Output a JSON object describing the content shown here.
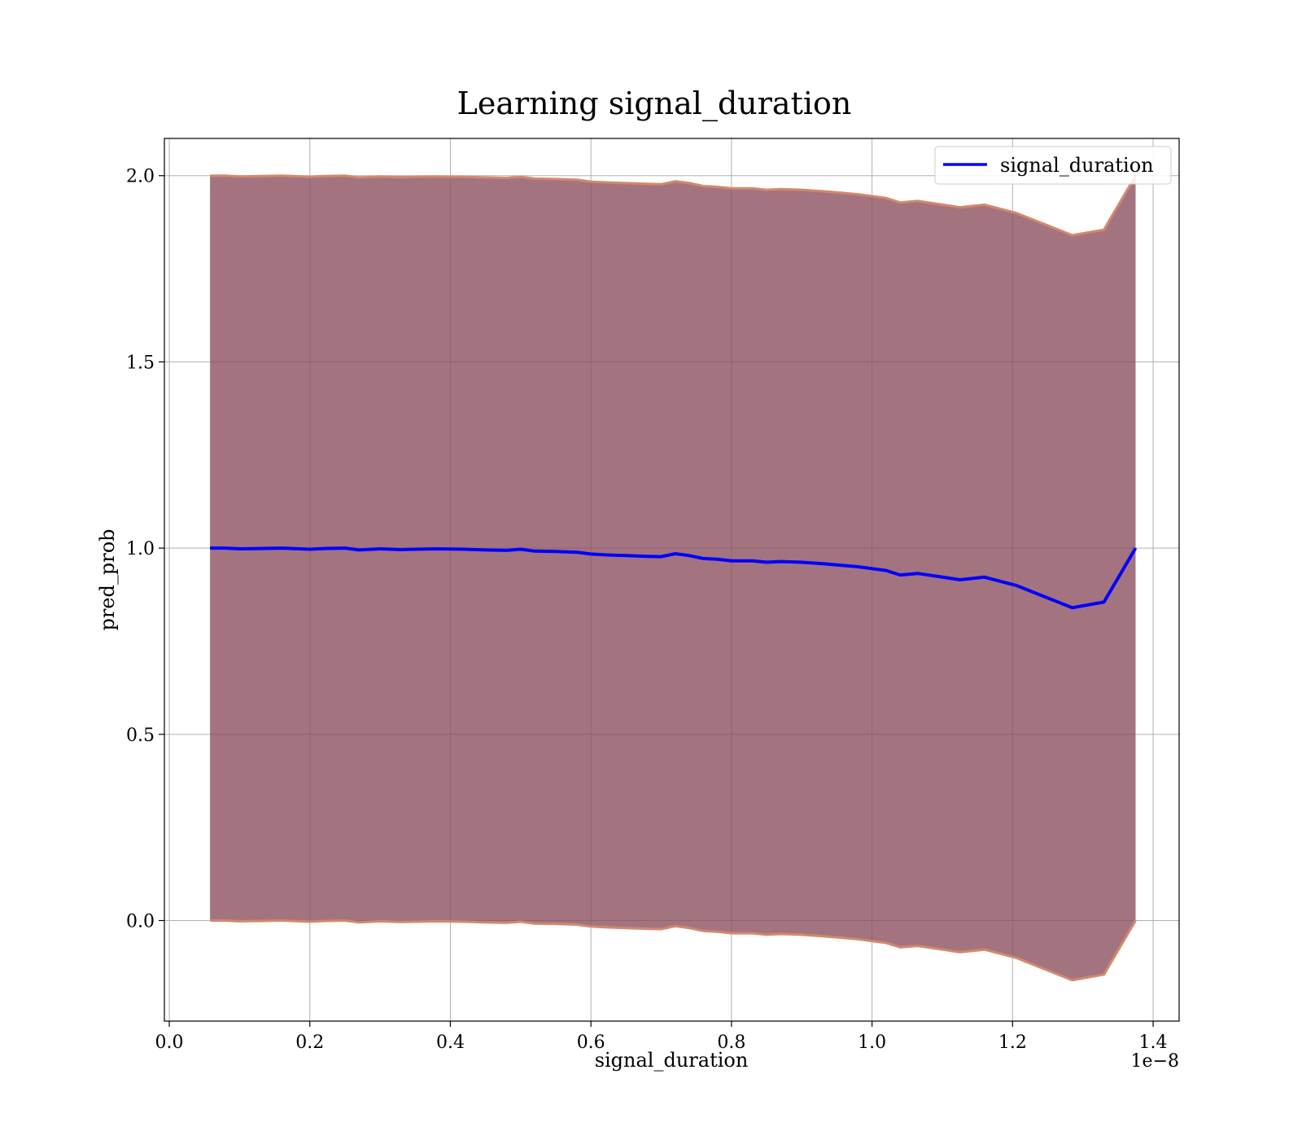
{
  "chart_data": {
    "type": "line",
    "title": "Learning signal_duration",
    "xlabel": "signal_duration",
    "ylabel": "pred_prob",
    "x_offset_label": "1e−8",
    "xlim": [
      -0.007,
      1.437
    ],
    "ylim": [
      -0.27,
      2.1
    ],
    "x_ticks": [
      0.0,
      0.2,
      0.4,
      0.6,
      0.8,
      1.0,
      1.2,
      1.4
    ],
    "x_tick_labels": [
      "0.0",
      "0.2",
      "0.4",
      "0.6",
      "0.8",
      "1.0",
      "1.2",
      "1.4"
    ],
    "y_ticks": [
      0.0,
      0.5,
      1.0,
      1.5,
      2.0
    ],
    "y_tick_labels": [
      "0.0",
      "0.5",
      "1.0",
      "1.5",
      "2.0"
    ],
    "grid": true,
    "legend": "top-right",
    "series": [
      {
        "name": "signal_duration",
        "color": "#0000ff",
        "x": [
          0.058,
          0.08,
          0.1,
          0.13,
          0.16,
          0.2,
          0.22,
          0.25,
          0.27,
          0.3,
          0.33,
          0.35,
          0.38,
          0.42,
          0.45,
          0.48,
          0.5,
          0.52,
          0.55,
          0.58,
          0.6,
          0.62,
          0.65,
          0.68,
          0.7,
          0.72,
          0.74,
          0.76,
          0.78,
          0.8,
          0.83,
          0.85,
          0.87,
          0.9,
          0.93,
          0.95,
          0.98,
          1.0,
          1.02,
          1.04,
          1.065,
          1.09,
          1.125,
          1.16,
          1.205,
          1.245,
          1.285,
          1.33,
          1.375
        ],
        "y": [
          1.0,
          1.0,
          0.998,
          0.999,
          1.0,
          0.997,
          0.999,
          1.0,
          0.995,
          0.998,
          0.996,
          0.997,
          0.998,
          0.997,
          0.995,
          0.994,
          0.997,
          0.992,
          0.991,
          0.989,
          0.984,
          0.982,
          0.98,
          0.978,
          0.977,
          0.985,
          0.98,
          0.972,
          0.97,
          0.966,
          0.966,
          0.962,
          0.964,
          0.962,
          0.958,
          0.955,
          0.95,
          0.945,
          0.94,
          0.928,
          0.932,
          0.925,
          0.915,
          0.922,
          0.9,
          0.87,
          0.84,
          0.855,
          1.0
        ],
        "band_color": "#8b4c5c",
        "band_edge_color": "#d2896c",
        "band_upper": [
          2.0,
          2.0,
          1.998,
          1.999,
          2.0,
          1.997,
          1.999,
          2.0,
          1.995,
          1.998,
          1.996,
          1.997,
          1.998,
          1.997,
          1.995,
          1.994,
          1.997,
          1.992,
          1.991,
          1.989,
          1.984,
          1.982,
          1.98,
          1.978,
          1.977,
          1.985,
          1.98,
          1.972,
          1.97,
          1.966,
          1.966,
          1.962,
          1.964,
          1.962,
          1.958,
          1.955,
          1.95,
          1.945,
          1.94,
          1.928,
          1.932,
          1.925,
          1.915,
          1.922,
          1.9,
          1.87,
          1.84,
          1.855,
          2.0
        ],
        "band_lower": [
          0.0,
          0.0,
          -0.002,
          -0.001,
          0.0,
          -0.003,
          -0.001,
          0.0,
          -0.005,
          -0.002,
          -0.004,
          -0.003,
          -0.002,
          -0.003,
          -0.005,
          -0.006,
          -0.003,
          -0.008,
          -0.009,
          -0.011,
          -0.016,
          -0.018,
          -0.02,
          -0.022,
          -0.023,
          -0.015,
          -0.02,
          -0.028,
          -0.03,
          -0.034,
          -0.034,
          -0.038,
          -0.036,
          -0.038,
          -0.042,
          -0.045,
          -0.05,
          -0.055,
          -0.06,
          -0.072,
          -0.068,
          -0.075,
          -0.085,
          -0.078,
          -0.1,
          -0.13,
          -0.16,
          -0.145,
          0.0
        ]
      }
    ]
  }
}
